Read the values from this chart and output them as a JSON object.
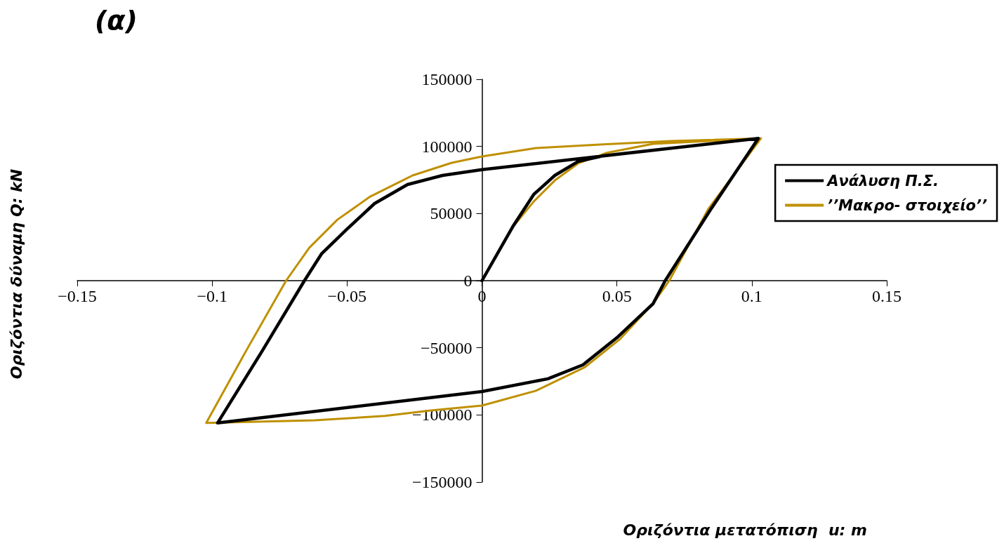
{
  "chart_data": {
    "type": "line",
    "title": "(α)",
    "xlabel": "Οριζόντια μετατόπιση  u: m",
    "ylabel": "Οριζόντια δύναμη Q: kN",
    "xlim": [
      -0.15,
      0.15
    ],
    "xticks": [
      {
        "value": -0.15,
        "label": "−0.15"
      },
      {
        "value": -0.1,
        "label": "−0.1"
      },
      {
        "value": -0.05,
        "label": "−0.05"
      },
      0,
      0.05,
      0.1,
      0.15
    ],
    "ylim": [
      -150000,
      150000
    ],
    "yticks": [
      {
        "value": -150000,
        "label": "−150000"
      },
      {
        "value": -100000,
        "label": "−100000"
      },
      {
        "value": -50000,
        "label": "−50000"
      },
      0,
      50000,
      100000,
      150000
    ],
    "grid": false,
    "legend": "right",
    "marker": "none",
    "line_style": "solid",
    "series": [
      {
        "name": "Ανάλυση Π.Σ.",
        "color": "#000000",
        "x": [
          0,
          0.0114,
          0.0192,
          0.027,
          0.0356,
          0.045,
          0.1024,
          0.085,
          0.0679,
          0.0634,
          0.0504,
          0.0374,
          0.0244,
          0,
          -0.098,
          -0.0814,
          -0.0658,
          -0.0595,
          -0.0502,
          -0.0398,
          -0.0276,
          -0.0146,
          0,
          0.1024
        ],
        "values": [
          0,
          40200,
          64300,
          78400,
          88800,
          93000,
          106000,
          53800,
          0,
          -17200,
          -41800,
          -62700,
          -73100,
          -82600,
          -106000,
          -52200,
          0,
          19900,
          38100,
          57500,
          71600,
          78400,
          82700,
          106000
        ]
      },
      {
        "name": "’’Μακρο- στοιχείο’’",
        "color": "#bf9000",
        "x": [
          0,
          0.0114,
          0.0192,
          0.027,
          0.0356,
          0.046,
          0.0634,
          0.1034,
          0.084,
          0.0694,
          0.0634,
          0.0512,
          0.0382,
          0.02,
          0,
          -0.019,
          -0.036,
          -0.062,
          -0.1022,
          -0.0874,
          -0.0726,
          -0.064,
          -0.0536,
          -0.0414,
          -0.0257,
          -0.0112,
          0,
          0.02,
          0.045,
          0.07,
          0.1034
        ],
        "values": [
          0,
          40000,
          59000,
          74700,
          87300,
          95100,
          101900,
          106000,
          53800,
          0,
          -17000,
          -43400,
          -64300,
          -82000,
          -93000,
          -96700,
          -100800,
          -104000,
          -106000,
          -52200,
          0,
          24500,
          45400,
          62700,
          78400,
          87800,
          92500,
          98800,
          101500,
          104000,
          106000
        ]
      }
    ]
  }
}
